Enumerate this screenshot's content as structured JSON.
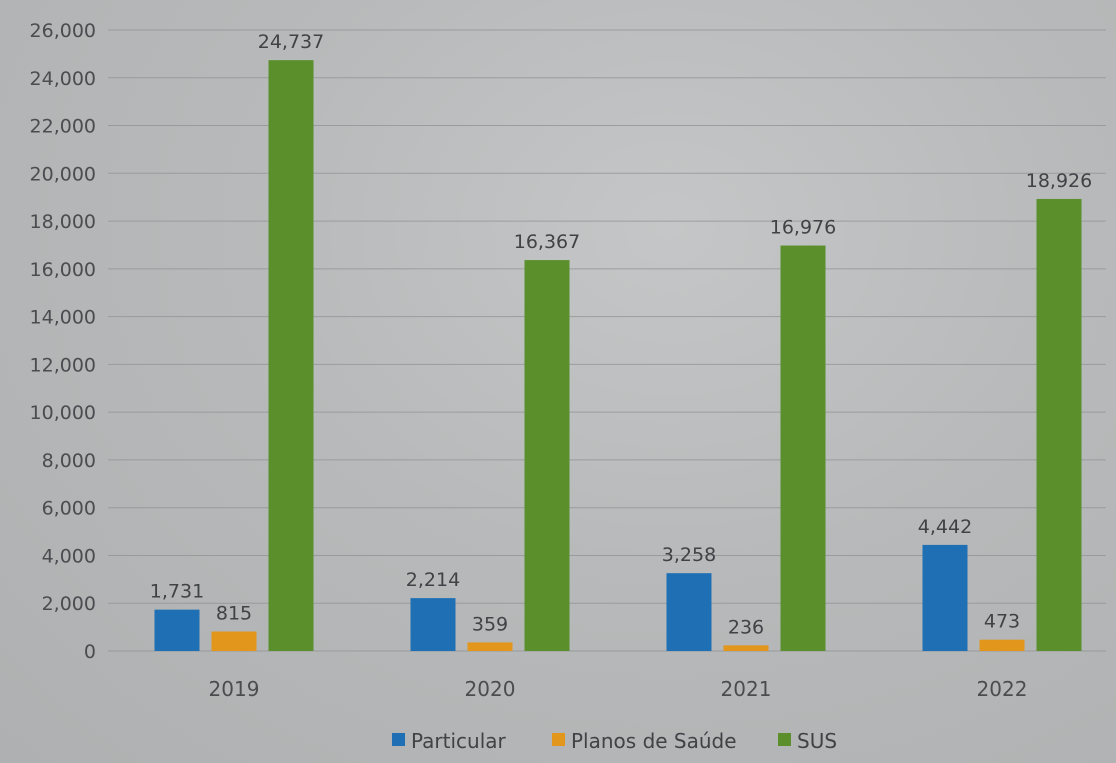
{
  "chart_data": {
    "type": "bar",
    "categories": [
      "2019",
      "2020",
      "2021",
      "2022"
    ],
    "series": [
      {
        "name": "Particular",
        "values": [
          1731,
          2214,
          3258,
          4442
        ],
        "labels": [
          "1,731",
          "2,214",
          "3,258",
          "4,442"
        ],
        "color": "#1f6fb5"
      },
      {
        "name": "Planos de Saúde",
        "values": [
          815,
          359,
          236,
          473
        ],
        "labels": [
          "815",
          "359",
          "236",
          "473"
        ],
        "color": "#e2961c"
      },
      {
        "name": "SUS",
        "values": [
          24737,
          16367,
          16976,
          18926
        ],
        "labels": [
          "24,737",
          "16,367",
          "16,976",
          "18,926"
        ],
        "color": "#5a8f2b"
      }
    ],
    "y_ticks": [
      "0",
      "2,000",
      "4,000",
      "6,000",
      "8,000",
      "10,000",
      "12,000",
      "14,000",
      "16,000",
      "18,000",
      "20,000",
      "22,000",
      "24,000",
      "26,000"
    ],
    "ylim": [
      0,
      26000
    ],
    "grid": true,
    "legend": "bottom"
  }
}
